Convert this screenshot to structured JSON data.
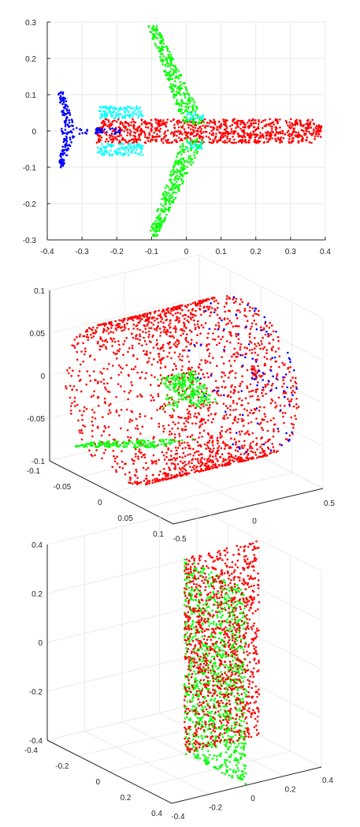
{
  "figure": {
    "background": "#ffffff",
    "subplot_count": 3
  },
  "chart_data": [
    {
      "type": "scatter",
      "view": "2d",
      "title": "",
      "xlabel": "",
      "ylabel": "",
      "xlim": [
        -0.4,
        0.4
      ],
      "ylim": [
        -0.3,
        0.3
      ],
      "grid": true,
      "xticks": [
        -0.4,
        -0.3,
        -0.2,
        -0.1,
        0,
        0.1,
        0.2,
        0.3,
        0.4
      ],
      "xtick_labels": [
        "-0.4",
        "-0.3",
        "-0.2",
        "-0.1",
        "0",
        "0.1",
        "0.2",
        "0.3",
        "0.4"
      ],
      "yticks": [
        -0.3,
        -0.2,
        -0.1,
        0,
        0.1,
        0.2,
        0.3
      ],
      "ytick_labels": [
        "-0.3",
        "-0.2",
        "-0.1",
        "0",
        "0.1",
        "0.2",
        "0.3"
      ],
      "series": [
        {
          "part": "fuselage",
          "color": "#ff0000",
          "regions": [
            {
              "shape": "rect",
              "x": [
                -0.26,
                0.37
              ],
              "y": [
                -0.033,
                0.033
              ],
              "points": 900
            },
            {
              "shape": "rect",
              "x": [
                0.37,
                0.39
              ],
              "y": [
                -0.018,
                0.018
              ],
              "points": 30
            }
          ]
        },
        {
          "part": "wings",
          "color": "#00ff00",
          "regions": [
            {
              "shape": "quad",
              "corners": [
                [
                  -0.11,
                  0.29
                ],
                [
                  -0.085,
                  0.29
                ],
                [
                  0.055,
                  0.02
                ],
                [
                  -0.01,
                  0.02
                ]
              ],
              "points": 300
            },
            {
              "shape": "quad",
              "corners": [
                [
                  -0.11,
                  -0.29
                ],
                [
                  -0.085,
                  -0.29
                ],
                [
                  0.055,
                  -0.02
                ],
                [
                  -0.01,
                  -0.02
                ]
              ],
              "points": 300
            }
          ]
        },
        {
          "part": "horizontal-stabilizers",
          "color": "#00ffff",
          "regions": [
            {
              "shape": "rect",
              "x": [
                -0.255,
                -0.125
              ],
              "y": [
                0.035,
                0.068
              ],
              "points": 110
            },
            {
              "shape": "rect",
              "x": [
                -0.255,
                -0.125
              ],
              "y": [
                -0.068,
                -0.035
              ],
              "points": 110
            },
            {
              "shape": "rect",
              "x": [
                0.0,
                0.05
              ],
              "y": [
                0.03,
                0.05
              ],
              "points": 20
            },
            {
              "shape": "rect",
              "x": [
                0.0,
                0.05
              ],
              "y": [
                -0.05,
                -0.03
              ],
              "points": 20
            }
          ]
        },
        {
          "part": "tail",
          "color": "#0000ff",
          "regions": [
            {
              "shape": "quad",
              "corners": [
                [
                  -0.37,
                  0.11
                ],
                [
                  -0.355,
                  0.11
                ],
                [
                  -0.32,
                  0.01
                ],
                [
                  -0.35,
                  0.01
                ]
              ],
              "points": 70
            },
            {
              "shape": "quad",
              "corners": [
                [
                  -0.37,
                  -0.1
                ],
                [
                  -0.355,
                  -0.1
                ],
                [
                  -0.32,
                  -0.01
                ],
                [
                  -0.35,
                  -0.01
                ]
              ],
              "points": 70
            },
            {
              "shape": "rect",
              "x": [
                -0.36,
                -0.19
              ],
              "y": [
                -0.008,
                0.008
              ],
              "points": 60
            }
          ]
        }
      ]
    },
    {
      "type": "scatter",
      "view": "3d",
      "title": "",
      "xlabel": "",
      "ylabel": "",
      "zlabel": "",
      "xlim": [
        -0.5,
        0.5
      ],
      "ylim": [
        -0.1,
        0.1
      ],
      "zlim": [
        -0.1,
        0.1
      ],
      "grid": true,
      "xticks": [
        -0.5,
        0,
        0.5
      ],
      "xtick_labels": [
        "-0.5",
        "0",
        "0.5"
      ],
      "yticks": [
        -0.1,
        -0.05,
        0,
        0.05,
        0.1
      ],
      "ytick_labels": [
        "-0.1",
        "-0.05",
        "0",
        "0.05",
        "0.1"
      ],
      "zticks": [
        -0.1,
        -0.05,
        0,
        0.05,
        0.1
      ],
      "ztick_labels": [
        "-0.1",
        "-0.05",
        "0",
        "0.05",
        "0.1"
      ],
      "series": [
        {
          "part": "fuselage",
          "color": "#ff0000",
          "regions": [
            {
              "shape": "cylinder",
              "x": [
                -0.45,
                0.38
              ],
              "radius": 0.08,
              "points": 1700
            },
            {
              "shape": "cap",
              "x_center": 0.38,
              "radius": 0.08,
              "points": 180
            }
          ]
        },
        {
          "part": "nose",
          "color": "#0000ff",
          "regions": [
            {
              "shape": "cap",
              "x_center": 0.38,
              "radius": 0.08,
              "points": 90
            }
          ]
        },
        {
          "part": "wings",
          "color": "#00ff00",
          "regions": [
            {
              "shape": "quad3",
              "corners": [
                [
                  -0.35,
                  0.1,
                  0.03
                ],
                [
                  -0.2,
                  0.1,
                  0.03
                ],
                [
                  0.05,
                  0.0,
                  0.02
                ],
                [
                  -0.2,
                  0.0,
                  0.02
                ]
              ],
              "points": 160
            },
            {
              "shape": "quad3",
              "corners": [
                [
                  -0.35,
                  -0.1,
                  -0.09
                ],
                [
                  -0.2,
                  -0.1,
                  -0.09
                ],
                [
                  0.05,
                  0.0,
                  -0.06
                ],
                [
                  -0.2,
                  0.0,
                  -0.06
                ]
              ],
              "points": 160
            },
            {
              "shape": "quad3",
              "corners": [
                [
                  -0.15,
                  0.0,
                  -0.02
                ],
                [
                  0.05,
                  0.0,
                  -0.02
                ],
                [
                  0.05,
                  0.0,
                  0.02
                ],
                [
                  -0.15,
                  0.0,
                  0.02
                ]
              ],
              "points": 60
            }
          ]
        }
      ]
    },
    {
      "type": "scatter",
      "view": "3d",
      "title": "",
      "xlabel": "",
      "ylabel": "",
      "zlabel": "",
      "xlim": [
        -0.4,
        0.4
      ],
      "ylim": [
        -0.4,
        0.4
      ],
      "zlim": [
        -0.4,
        0.4
      ],
      "grid": true,
      "xticks": [
        -0.4,
        -0.2,
        0,
        0.2,
        0.4
      ],
      "xtick_labels": [
        "-0.4",
        "-0.2",
        "0",
        "0.2",
        "0.4"
      ],
      "yticks": [
        -0.4,
        -0.2,
        0,
        0.2,
        0.4
      ],
      "ytick_labels": [
        "-0.4",
        "-0.2",
        "0",
        "0.2",
        "0.4"
      ],
      "zticks": [
        -0.4,
        -0.2,
        0,
        0.2,
        0.4
      ],
      "ztick_labels": [
        "-0.4",
        "-0.2",
        "0",
        "0.2",
        "0.4"
      ],
      "series": [
        {
          "part": "left-face",
          "color": "#00ff00",
          "regions": [
            {
              "shape": "plane",
              "axis": "x",
              "value": 0,
              "y": [
                0,
                0.4
              ],
              "z": [
                -0.4,
                0.4
              ],
              "points": 1100
            }
          ]
        },
        {
          "part": "right-face",
          "color": "#ff0000",
          "regions": [
            {
              "shape": "plane",
              "axis": "y",
              "value": 0,
              "x": [
                0,
                0.4
              ],
              "z": [
                -0.4,
                0.4
              ],
              "points": 1100
            }
          ]
        }
      ]
    }
  ]
}
